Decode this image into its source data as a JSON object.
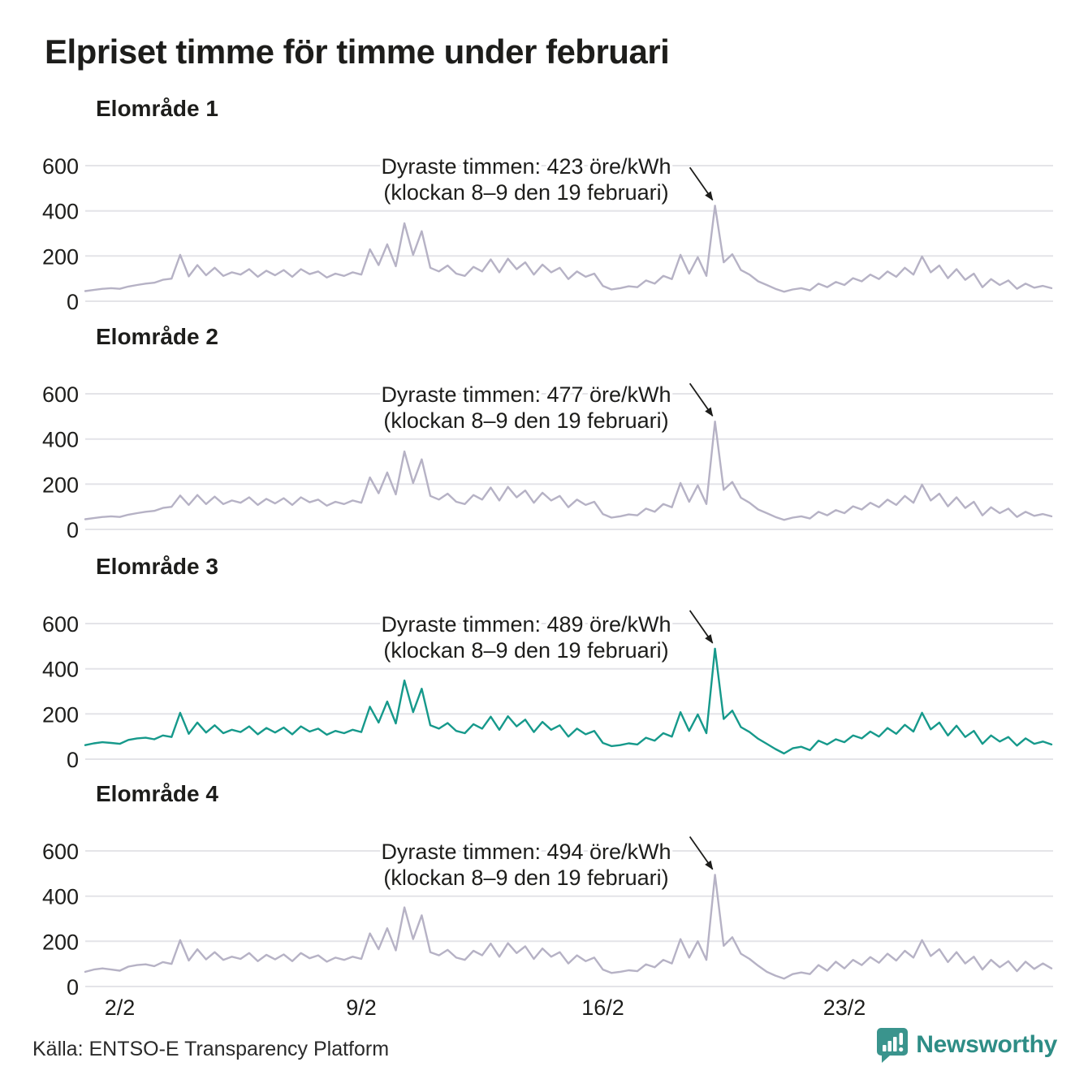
{
  "title": "Elpriset timme för timme under februari",
  "y_axis": {
    "ticks": [
      600,
      400,
      200,
      0
    ]
  },
  "x_axis": {
    "tick_labels": [
      "2/2",
      "9/2",
      "16/2",
      "23/2"
    ],
    "tick_days": [
      2,
      9,
      16,
      23
    ]
  },
  "colors": {
    "series_gray": "#b6b2c5",
    "series_teal": "#16998b",
    "grid": "#e4e4e8",
    "text": "#1d1d1b",
    "brand_teal": "#2e8d86"
  },
  "footer": {
    "source": "Källa: ENTSO-E Transparency Platform",
    "brand": "Newsworthy"
  },
  "chart_data": [
    {
      "type": "line",
      "subtitle": "Elområde 1",
      "unit": "öre/kWh",
      "ylim": [
        0,
        650
      ],
      "x_start": "1 februari 00:00",
      "sample_interval_hours": 6,
      "annotation": {
        "line1": "Dyraste timmen: 423 öre/kWh",
        "line2": "(klockan 8–9 den 19 februari)"
      },
      "max_point": {
        "value": 423,
        "time": "klockan 8–9 den 19 februari"
      },
      "color": "#b6b2c5",
      "values": [
        45,
        50,
        55,
        58,
        55,
        65,
        72,
        78,
        82,
        95,
        100,
        205,
        110,
        160,
        115,
        148,
        112,
        128,
        118,
        142,
        108,
        135,
        115,
        138,
        108,
        142,
        120,
        132,
        105,
        122,
        112,
        128,
        118,
        230,
        160,
        252,
        155,
        345,
        205,
        310,
        148,
        132,
        158,
        122,
        112,
        152,
        132,
        185,
        128,
        188,
        142,
        172,
        118,
        162,
        128,
        148,
        98,
        132,
        108,
        122,
        68,
        52,
        58,
        66,
        62,
        92,
        78,
        112,
        98,
        205,
        122,
        195,
        112,
        423,
        172,
        208,
        138,
        118,
        88,
        72,
        55,
        42,
        52,
        58,
        48,
        78,
        62,
        85,
        72,
        102,
        88,
        118,
        98,
        132,
        108,
        148,
        118,
        198,
        128,
        158,
        102,
        142,
        95,
        122,
        62,
        98,
        72,
        92,
        55,
        78,
        60,
        68,
        58
      ]
    },
    {
      "type": "line",
      "subtitle": "Elområde 2",
      "unit": "öre/kWh",
      "ylim": [
        0,
        650
      ],
      "x_start": "1 februari 00:00",
      "sample_interval_hours": 6,
      "annotation": {
        "line1": "Dyraste timmen: 477 öre/kWh",
        "line2": "(klockan 8–9 den 19 februari)"
      },
      "max_point": {
        "value": 477,
        "time": "klockan 8–9 den 19 februari"
      },
      "color": "#b6b2c5",
      "values": [
        45,
        50,
        55,
        58,
        55,
        65,
        72,
        78,
        82,
        95,
        100,
        150,
        108,
        152,
        112,
        145,
        112,
        128,
        118,
        142,
        108,
        135,
        115,
        138,
        108,
        142,
        120,
        132,
        105,
        122,
        112,
        128,
        118,
        230,
        160,
        252,
        155,
        345,
        205,
        310,
        148,
        132,
        158,
        122,
        112,
        152,
        132,
        185,
        128,
        188,
        142,
        172,
        118,
        162,
        128,
        148,
        98,
        132,
        108,
        122,
        68,
        52,
        58,
        66,
        62,
        92,
        78,
        112,
        98,
        205,
        122,
        195,
        112,
        477,
        175,
        210,
        140,
        118,
        88,
        72,
        55,
        42,
        52,
        58,
        48,
        78,
        62,
        85,
        72,
        102,
        88,
        118,
        98,
        132,
        108,
        148,
        118,
        198,
        128,
        158,
        102,
        142,
        95,
        122,
        62,
        98,
        72,
        92,
        55,
        78,
        60,
        68,
        58
      ]
    },
    {
      "type": "line",
      "subtitle": "Elområde 3",
      "unit": "öre/kWh",
      "ylim": [
        0,
        650
      ],
      "x_start": "1 februari 00:00",
      "sample_interval_hours": 6,
      "annotation": {
        "line1": "Dyraste timmen: 489 öre/kWh",
        "line2": "(klockan 8–9 den 19 februari)"
      },
      "max_point": {
        "value": 489,
        "time": "klockan 8–9 den 19 februari"
      },
      "color": "#16998b",
      "values": [
        62,
        70,
        75,
        72,
        68,
        85,
        92,
        95,
        88,
        105,
        98,
        205,
        112,
        162,
        118,
        150,
        115,
        130,
        120,
        145,
        110,
        138,
        118,
        140,
        110,
        145,
        122,
        135,
        108,
        125,
        115,
        130,
        120,
        232,
        162,
        255,
        158,
        348,
        208,
        312,
        150,
        135,
        160,
        125,
        115,
        155,
        135,
        188,
        130,
        190,
        145,
        175,
        120,
        165,
        130,
        150,
        100,
        135,
        110,
        125,
        72,
        58,
        62,
        70,
        65,
        95,
        82,
        115,
        100,
        208,
        125,
        198,
        115,
        489,
        178,
        215,
        142,
        120,
        90,
        68,
        45,
        25,
        48,
        55,
        40,
        82,
        65,
        88,
        75,
        105,
        92,
        122,
        100,
        138,
        112,
        152,
        122,
        205,
        132,
        162,
        105,
        148,
        98,
        125,
        68,
        105,
        78,
        98,
        60,
        92,
        68,
        78,
        65
      ]
    },
    {
      "type": "line",
      "subtitle": "Elområde 4",
      "unit": "öre/kWh",
      "ylim": [
        0,
        650
      ],
      "x_start": "1 februari 00:00",
      "sample_interval_hours": 6,
      "annotation": {
        "line1": "Dyraste timmen: 494 öre/kWh",
        "line2": "(klockan 8–9 den 19 februari)"
      },
      "max_point": {
        "value": 494,
        "time": "klockan 8–9 den 19 februari"
      },
      "color": "#b6b2c5",
      "values": [
        65,
        75,
        80,
        75,
        70,
        88,
        95,
        98,
        90,
        108,
        100,
        205,
        115,
        165,
        120,
        152,
        118,
        132,
        122,
        148,
        112,
        140,
        120,
        142,
        112,
        148,
        125,
        138,
        110,
        128,
        118,
        132,
        122,
        235,
        165,
        258,
        160,
        350,
        210,
        315,
        152,
        138,
        162,
        128,
        118,
        158,
        138,
        190,
        132,
        192,
        148,
        178,
        122,
        168,
        132,
        152,
        102,
        138,
        112,
        128,
        75,
        60,
        65,
        72,
        68,
        98,
        85,
        118,
        102,
        210,
        128,
        200,
        118,
        494,
        180,
        218,
        145,
        122,
        92,
        65,
        48,
        35,
        55,
        62,
        55,
        95,
        70,
        110,
        80,
        118,
        95,
        130,
        105,
        145,
        115,
        158,
        128,
        205,
        135,
        165,
        108,
        152,
        102,
        132,
        75,
        118,
        85,
        112,
        68,
        110,
        78,
        102,
        80
      ]
    }
  ]
}
